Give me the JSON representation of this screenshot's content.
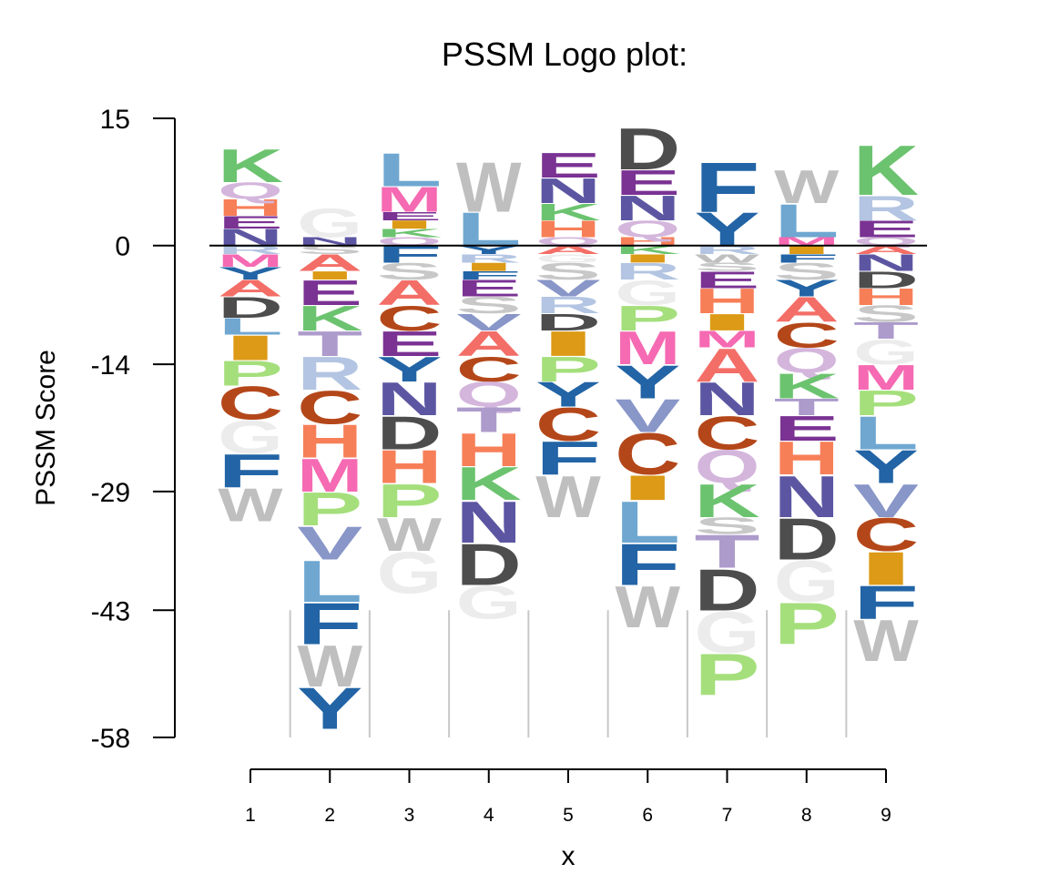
{
  "chart_data": {
    "type": "sequence-logo",
    "title": "PSSM Logo plot:",
    "xlabel": "x",
    "ylabel": "PSSM  Score",
    "ylim": [
      -58,
      15
    ],
    "yticks": [
      "15",
      "0",
      "-14",
      "-29",
      "-43",
      "-58"
    ],
    "ytick_values": [
      15,
      0,
      -14,
      -29,
      -43,
      -58
    ],
    "positions": [
      "1",
      "2",
      "3",
      "4",
      "5",
      "6",
      "7",
      "8",
      "9"
    ],
    "baseline": 0,
    "colors": {
      "K": "#6cc36f",
      "Q": "#d4b6dc",
      "H": "#f77f58",
      "E": "#7a3293",
      "N": "#5c56a2",
      "R": "#b3c5e2",
      "S": "#c8c8c8",
      "A": "#f36e67",
      "D": "#4d4d4d",
      "L": "#6fa7d1",
      "I": "#dc9a16",
      "P": "#a5df7c",
      "C": "#b4471a",
      "G": "#ececec",
      "F": "#2264a5",
      "W": "#bfbfbf",
      "Y": "#2264a5",
      "T": "#ad9bcc",
      "M": "#f56ab2",
      "V": "#8896c8"
    },
    "stacks": [
      {
        "position": "1",
        "positive": [
          [
            "N",
            2
          ],
          [
            "E",
            1.5
          ],
          [
            "H",
            2
          ],
          [
            "Q",
            2
          ],
          [
            "K",
            4
          ]
        ],
        "negative": [
          [
            "R",
            1
          ],
          [
            "M",
            1.5
          ],
          [
            "Y",
            1.5
          ],
          [
            "A",
            2
          ],
          [
            "D",
            2.5
          ],
          [
            "L",
            2
          ],
          [
            "I",
            3
          ],
          [
            "P",
            3
          ],
          [
            "C",
            4
          ],
          [
            "G",
            4
          ],
          [
            "F",
            4
          ],
          [
            "W",
            4
          ]
        ]
      },
      {
        "position": "2",
        "positive": [
          [
            "N",
            1
          ],
          [
            "G",
            3.5
          ]
        ],
        "negative": [
          [
            "S",
            1
          ],
          [
            "A",
            2
          ],
          [
            "I",
            1
          ],
          [
            "E",
            3
          ],
          [
            "K",
            3
          ],
          [
            "T",
            3
          ],
          [
            "R",
            4
          ],
          [
            "C",
            4
          ],
          [
            "H",
            4
          ],
          [
            "M",
            4
          ],
          [
            "P",
            4
          ],
          [
            "V",
            4
          ],
          [
            "L",
            5
          ],
          [
            "F",
            5
          ],
          [
            "W",
            5
          ],
          [
            "Y",
            5
          ]
        ]
      },
      {
        "position": "3",
        "positive": [
          [
            "Q",
            1
          ],
          [
            "K",
            1
          ],
          [
            "I",
            1
          ],
          [
            "E",
            1
          ],
          [
            "M",
            3
          ],
          [
            "L",
            4
          ]
        ],
        "negative": [
          [
            "F",
            2
          ],
          [
            "S",
            2
          ],
          [
            "A",
            3
          ],
          [
            "C",
            3
          ],
          [
            "E",
            3
          ],
          [
            "Y",
            3
          ],
          [
            "N",
            4
          ],
          [
            "D",
            4
          ],
          [
            "H",
            4
          ],
          [
            "P",
            4
          ],
          [
            "W",
            4
          ],
          [
            "G",
            5
          ]
        ]
      },
      {
        "position": "4",
        "positive": [
          [
            "L",
            4
          ],
          [
            "W",
            6
          ]
        ],
        "negative": [
          [
            "Y",
            1
          ],
          [
            "R",
            1
          ],
          [
            "I",
            1
          ],
          [
            "F",
            1
          ],
          [
            "E",
            2
          ],
          [
            "S",
            2
          ],
          [
            "V",
            2
          ],
          [
            "A",
            3
          ],
          [
            "C",
            3
          ],
          [
            "Q",
            3
          ],
          [
            "T",
            3
          ],
          [
            "H",
            4
          ],
          [
            "K",
            4
          ],
          [
            "N",
            5
          ],
          [
            "D",
            5
          ],
          [
            "G",
            4
          ]
        ]
      },
      {
        "position": "5",
        "positive": [
          [
            "Q",
            1
          ],
          [
            "H",
            2
          ],
          [
            "K",
            2
          ],
          [
            "N",
            3
          ],
          [
            "E",
            3
          ]
        ],
        "negative": [
          [
            "A",
            1
          ],
          [
            "G",
            1
          ],
          [
            "S",
            2
          ],
          [
            "V",
            2
          ],
          [
            "R",
            2
          ],
          [
            "D",
            2
          ],
          [
            "I",
            3
          ],
          [
            "P",
            3
          ],
          [
            "Y",
            3
          ],
          [
            "C",
            4
          ],
          [
            "F",
            4
          ],
          [
            "W",
            5
          ]
        ]
      },
      {
        "position": "6",
        "positive": [
          [
            "H",
            1
          ],
          [
            "Q",
            2
          ],
          [
            "N",
            3
          ],
          [
            "E",
            3
          ],
          [
            "D",
            5
          ]
        ],
        "negative": [
          [
            "K",
            1
          ],
          [
            "I",
            1
          ],
          [
            "R",
            2
          ],
          [
            "G",
            3
          ],
          [
            "P",
            3
          ],
          [
            "M",
            4
          ],
          [
            "Y",
            4
          ],
          [
            "V",
            4
          ],
          [
            "C",
            5
          ],
          [
            "I",
            3
          ],
          [
            "L",
            5
          ],
          [
            "F",
            5
          ],
          [
            "W",
            5
          ]
        ]
      },
      {
        "position": "7",
        "positive": [
          [
            "Y",
            4
          ],
          [
            "F",
            6
          ]
        ],
        "negative": [
          [
            "R",
            1
          ],
          [
            "W",
            1
          ],
          [
            "S",
            1
          ],
          [
            "E",
            2
          ],
          [
            "H",
            3
          ],
          [
            "I",
            2
          ],
          [
            "M",
            2
          ],
          [
            "A",
            4
          ],
          [
            "N",
            4
          ],
          [
            "C",
            4
          ],
          [
            "Q",
            4
          ],
          [
            "K",
            4
          ],
          [
            "S",
            2
          ],
          [
            "T",
            4
          ],
          [
            "D",
            5
          ],
          [
            "G",
            5
          ],
          [
            "P",
            5
          ]
        ]
      },
      {
        "position": "8",
        "positive": [
          [
            "M",
            1
          ],
          [
            "L",
            4
          ],
          [
            "W",
            4
          ]
        ],
        "negative": [
          [
            "I",
            1
          ],
          [
            "F",
            1
          ],
          [
            "S",
            2
          ],
          [
            "Y",
            2
          ],
          [
            "A",
            3
          ],
          [
            "C",
            3
          ],
          [
            "Q",
            3
          ],
          [
            "K",
            3
          ],
          [
            "T",
            2
          ],
          [
            "E",
            3
          ],
          [
            "H",
            4
          ],
          [
            "N",
            5
          ],
          [
            "D",
            5
          ],
          [
            "G",
            5
          ],
          [
            "P",
            5
          ]
        ]
      },
      {
        "position": "9",
        "positive": [
          [
            "Q",
            1
          ],
          [
            "E",
            2
          ],
          [
            "R",
            3
          ],
          [
            "K",
            6
          ]
        ],
        "negative": [
          [
            "A",
            1
          ],
          [
            "N",
            2
          ],
          [
            "D",
            2
          ],
          [
            "H",
            2
          ],
          [
            "S",
            2
          ],
          [
            "T",
            2
          ],
          [
            "G",
            3
          ],
          [
            "M",
            3
          ],
          [
            "P",
            3
          ],
          [
            "L",
            4
          ],
          [
            "Y",
            4
          ],
          [
            "V",
            4
          ],
          [
            "C",
            4
          ],
          [
            "I",
            4
          ],
          [
            "F",
            4
          ],
          [
            "W",
            5
          ]
        ]
      }
    ]
  }
}
